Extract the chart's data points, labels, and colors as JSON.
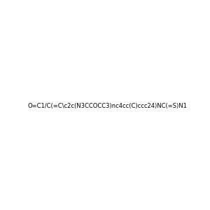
{
  "smiles": "O=C1/C(=C\\c2c(N3CCOCC3)nc4cc(C)ccc24)NC(=S)N1",
  "title": "",
  "img_size": [
    300,
    300
  ],
  "background_color": "#f0f0f0",
  "atom_colors": {
    "N": "#0000ff",
    "O": "#ff0000",
    "S": "#808000"
  }
}
